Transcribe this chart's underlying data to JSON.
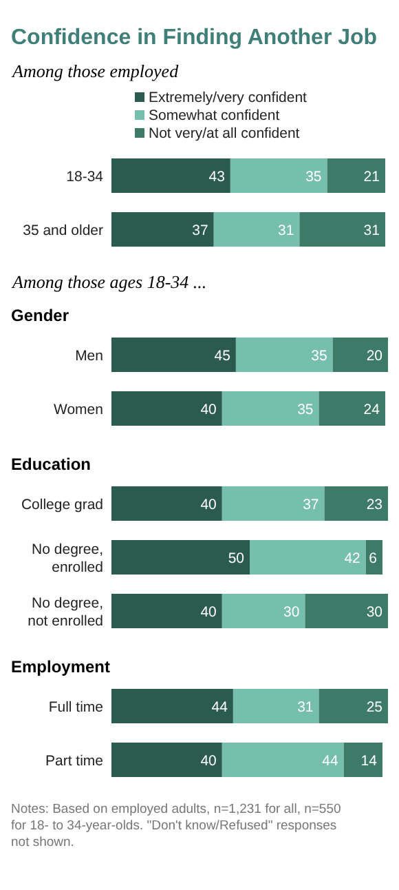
{
  "chart_data": [
    {
      "type": "bar",
      "orientation": "horizontal",
      "stacked": true,
      "data_labels": true,
      "legend": "top",
      "title": "Confidence in Finding Another Job",
      "subtitle": "Among those employed",
      "categories": [
        "18-34",
        "35 and older"
      ],
      "series": [
        {
          "name": "Extremely/very confident",
          "color": "#2b5b4f",
          "values": [
            43,
            37
          ]
        },
        {
          "name": "Somewhat confident",
          "color": "#76bfae",
          "values": [
            35,
            31
          ]
        },
        {
          "name": "Not very/at all confident",
          "color": "#3d7a68",
          "values": [
            21,
            31
          ]
        }
      ]
    },
    {
      "type": "bar",
      "orientation": "horizontal",
      "stacked": true,
      "data_labels": true,
      "subtitle": "Among those ages 18-34 ...",
      "title": "Gender",
      "categories": [
        "Men",
        "Women"
      ],
      "series": [
        {
          "color": "#2b5b4f",
          "values": [
            45,
            40
          ]
        },
        {
          "color": "#76bfae",
          "values": [
            35,
            35
          ]
        },
        {
          "color": "#3d7a68",
          "values": [
            20,
            24
          ]
        }
      ]
    },
    {
      "type": "bar",
      "orientation": "horizontal",
      "stacked": true,
      "data_labels": true,
      "title": "Education",
      "categories": [
        "College grad",
        "No degree, enrolled",
        "No degree, not enrolled"
      ],
      "series": [
        {
          "color": "#2b5b4f",
          "values": [
            40,
            50,
            40
          ]
        },
        {
          "color": "#76bfae",
          "values": [
            37,
            42,
            30
          ]
        },
        {
          "color": "#3d7a68",
          "values": [
            23,
            6,
            30
          ]
        }
      ]
    },
    {
      "type": "bar",
      "orientation": "horizontal",
      "stacked": true,
      "data_labels": true,
      "title": "Employment",
      "categories": [
        "Full time",
        "Part time"
      ],
      "series": [
        {
          "color": "#2b5b4f",
          "values": [
            44,
            40
          ]
        },
        {
          "color": "#76bfae",
          "values": [
            31,
            44
          ]
        },
        {
          "color": "#3d7a68",
          "values": [
            25,
            14
          ]
        }
      ],
      "annotations": [
        "Notes: Based on employed adults, n=1,231 for all, n=550 for 18- to 34-year-olds. \"Don't know/Refused\" responses not shown."
      ]
    }
  ]
}
